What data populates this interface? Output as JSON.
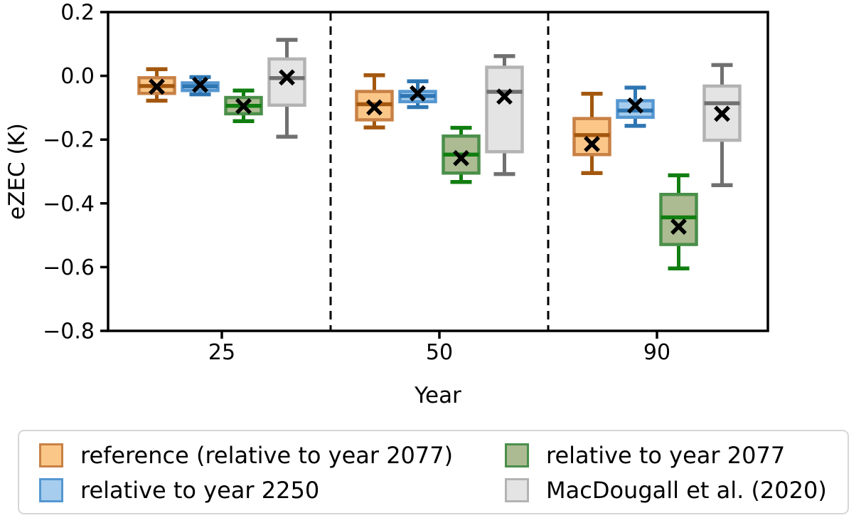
{
  "chart_data": {
    "type": "boxplot",
    "title": "",
    "xlabel": "Year",
    "ylabel": "eZEC (K)",
    "categories": [
      "25",
      "50",
      "90"
    ],
    "ylim": [
      -0.8,
      0.2
    ],
    "yticks": [
      {
        "value": 0.2,
        "label": "0.2"
      },
      {
        "value": 0.0,
        "label": "0.0"
      },
      {
        "value": -0.2,
        "label": "−0.2"
      },
      {
        "value": -0.4,
        "label": "−0.4"
      },
      {
        "value": -0.6,
        "label": "−0.6"
      },
      {
        "value": -0.8,
        "label": "−0.8"
      }
    ],
    "grid": false,
    "legend_position": "bottom",
    "legend_columns": 2,
    "mean_marker": "x",
    "mean_marker_color": "#000000",
    "separator_lines": {
      "style": "dashed",
      "color": "#000000",
      "positions_between_categories": [
        [
          "25",
          "50"
        ],
        [
          "50",
          "90"
        ]
      ]
    },
    "series": [
      {
        "name": "reference (relative to year 2077)",
        "slug": "reference",
        "fill": "#fbc789",
        "edge": "#c88145",
        "line": "#a3570e",
        "boxes": [
          {
            "whisker_low": -0.078,
            "q1": -0.055,
            "median": -0.032,
            "q3": -0.006,
            "whisker_high": 0.021,
            "mean": -0.034
          },
          {
            "whisker_low": -0.162,
            "q1": -0.138,
            "median": -0.089,
            "q3": -0.049,
            "whisker_high": 0.002,
            "mean": -0.099
          },
          {
            "whisker_low": -0.305,
            "q1": -0.247,
            "median": -0.186,
            "q3": -0.134,
            "whisker_high": -0.056,
            "mean": -0.214
          }
        ]
      },
      {
        "name": "relative to year 2250",
        "slug": "relative-2250",
        "fill": "#a6cdee",
        "edge": "#5597d1",
        "line": "#2e76b2",
        "boxes": [
          {
            "whisker_low": -0.058,
            "q1": -0.046,
            "median": -0.033,
            "q3": -0.022,
            "whisker_high": -0.004,
            "mean": -0.028
          },
          {
            "whisker_low": -0.098,
            "q1": -0.081,
            "median": -0.063,
            "q3": -0.049,
            "whisker_high": -0.017,
            "mean": -0.055
          },
          {
            "whisker_low": -0.157,
            "q1": -0.13,
            "median": -0.109,
            "q3": -0.078,
            "whisker_high": -0.037,
            "mean": -0.093
          }
        ]
      },
      {
        "name": "relative to year 2077",
        "slug": "relative-2077",
        "fill": "#adbb92",
        "edge": "#4a8f4a",
        "line": "#107e10",
        "boxes": [
          {
            "whisker_low": -0.142,
            "q1": -0.119,
            "median": -0.094,
            "q3": -0.068,
            "whisker_high": -0.046,
            "mean": -0.095
          },
          {
            "whisker_low": -0.333,
            "q1": -0.305,
            "median": -0.247,
            "q3": -0.189,
            "whisker_high": -0.163,
            "mean": -0.258
          },
          {
            "whisker_low": -0.604,
            "q1": -0.529,
            "median": -0.444,
            "q3": -0.372,
            "whisker_high": -0.312,
            "mean": -0.473
          }
        ]
      },
      {
        "name": "MacDougall et al. (2020)",
        "slug": "macdougall-2020",
        "fill": "#e4e4e4",
        "edge": "#b3b3b3",
        "line": "#707070",
        "boxes": [
          {
            "whisker_low": -0.191,
            "q1": -0.092,
            "median": -0.007,
            "q3": 0.053,
            "whisker_high": 0.113,
            "mean": -0.005
          },
          {
            "whisker_low": -0.308,
            "q1": -0.238,
            "median": -0.05,
            "q3": 0.027,
            "whisker_high": 0.062,
            "mean": -0.065
          },
          {
            "whisker_low": -0.343,
            "q1": -0.202,
            "median": -0.086,
            "q3": -0.032,
            "whisker_high": 0.034,
            "mean": -0.119
          }
        ]
      }
    ]
  }
}
